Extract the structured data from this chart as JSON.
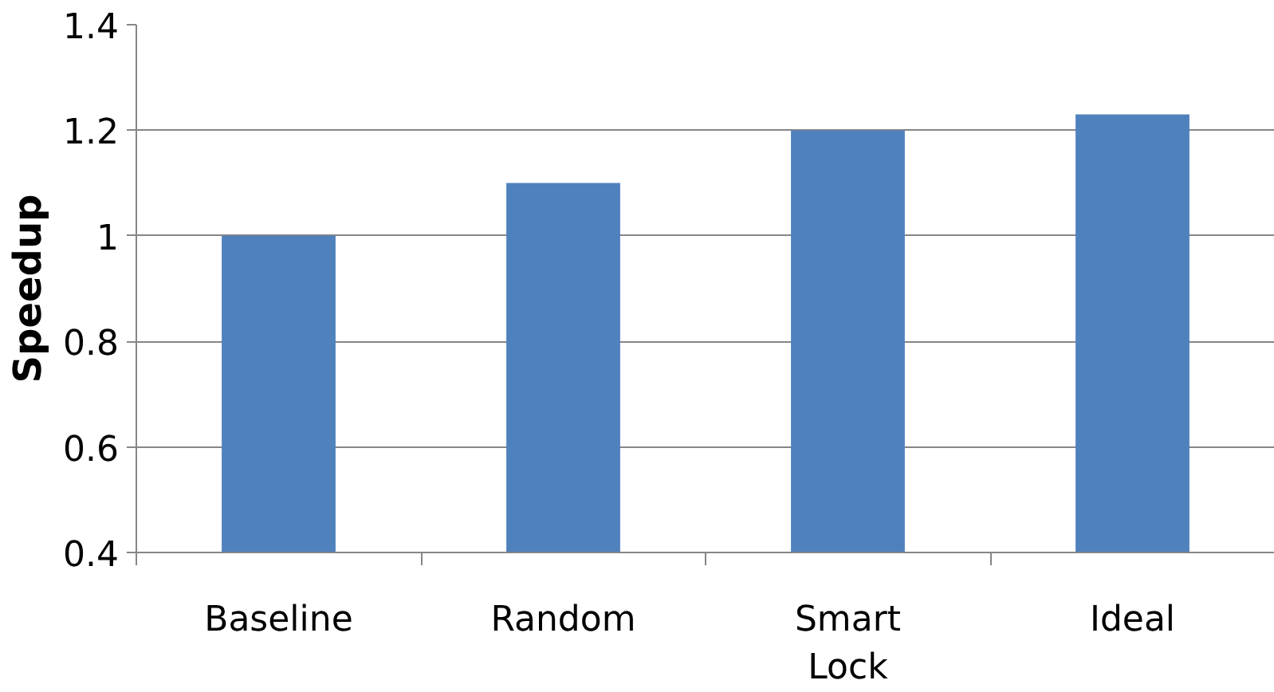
{
  "chart_data": {
    "type": "bar",
    "ylabel": "Speedup",
    "categories": [
      "Baseline",
      "Random",
      "Smart Lock",
      "Ideal"
    ],
    "values": [
      1.0,
      1.1,
      1.2,
      1.23
    ],
    "color": "#4f81bd",
    "ylim": [
      0.4,
      1.4
    ],
    "yticks": [
      0.4,
      0.6,
      0.8,
      1,
      1.2,
      1.4
    ],
    "grid": "y"
  }
}
